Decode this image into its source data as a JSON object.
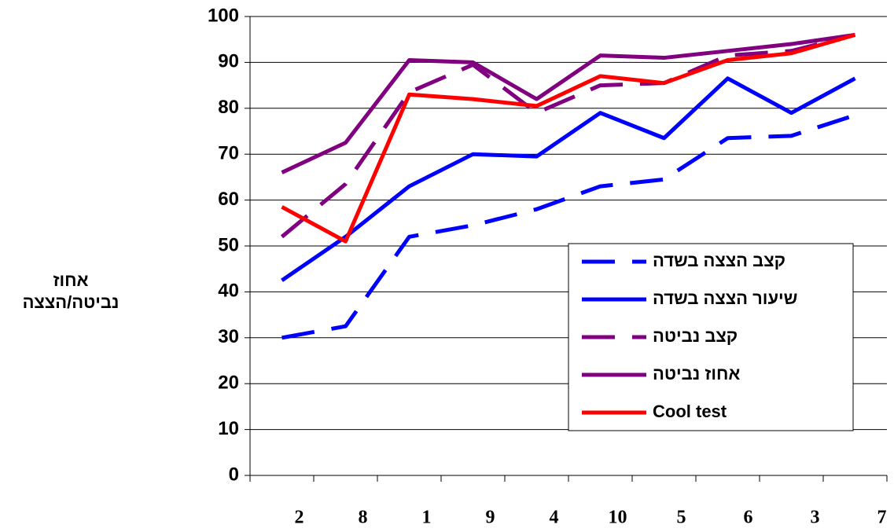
{
  "chart_data": {
    "type": "line",
    "ylabel": [
      "אחוז",
      "נביטה/הצצה"
    ],
    "categories": [
      "2",
      "8",
      "1",
      "9",
      "4",
      "10",
      "5",
      "6",
      "3",
      "7"
    ],
    "series": [
      {
        "name": "קצב הצצה בשדה",
        "color": "#0000ff",
        "dashed": true,
        "values": [
          30,
          32.5,
          52,
          54.5,
          58,
          63,
          64.5,
          73.5,
          74,
          78.5
        ]
      },
      {
        "name": "שיעור הצצה בשדה",
        "color": "#0000ff",
        "dashed": false,
        "values": [
          42.5,
          52,
          63,
          70,
          69.5,
          79,
          73.5,
          86.5,
          79,
          86.5
        ]
      },
      {
        "name": "קצב נביטה",
        "color": "#800080",
        "dashed": true,
        "values": [
          52,
          63.5,
          83.5,
          89.5,
          79,
          85,
          85.5,
          91.5,
          92.5,
          96
        ]
      },
      {
        "name": "אחוז נביטה",
        "color": "#800080",
        "dashed": false,
        "values": [
          66,
          72.5,
          90.5,
          90,
          82,
          91.5,
          91,
          92.5,
          94,
          96
        ]
      },
      {
        "name": "Cool test",
        "color": "#ff0000",
        "dashed": false,
        "values": [
          58.5,
          51,
          83,
          82,
          80.5,
          87,
          85.5,
          90.5,
          92,
          96
        ]
      }
    ],
    "ylim": [
      0,
      100
    ],
    "yticks": [
      0,
      10,
      20,
      30,
      40,
      50,
      60,
      70,
      80,
      90,
      100
    ],
    "grid": true
  }
}
